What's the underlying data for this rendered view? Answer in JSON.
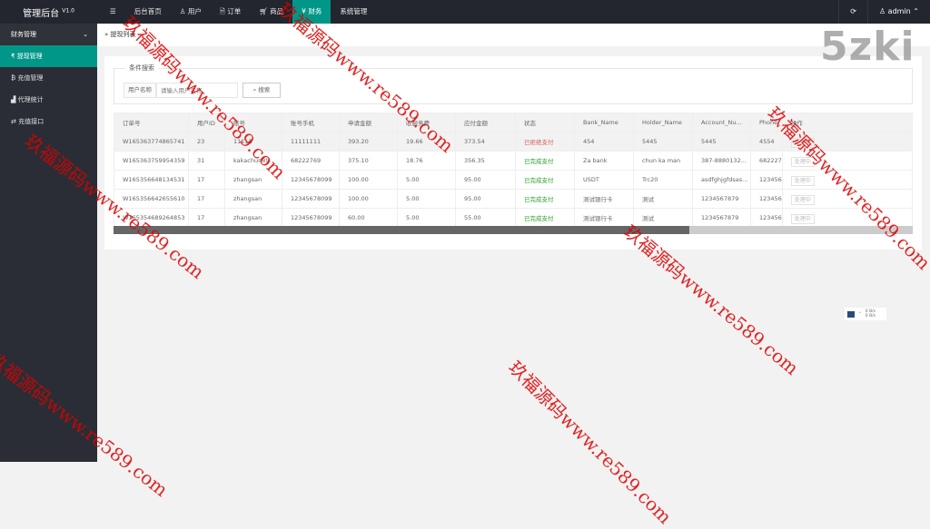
{
  "app": {
    "title": "管理后台",
    "version": "V1.0"
  },
  "topnav": {
    "menu_icon": "hamburger-icon",
    "items": [
      {
        "label": "后台首页"
      },
      {
        "label": "用户",
        "icon": "user-icon"
      },
      {
        "label": "订单",
        "icon": "document-icon"
      },
      {
        "label": "商品",
        "icon": "cart-icon"
      },
      {
        "label": "财务",
        "icon": "yen-icon",
        "active": true
      },
      {
        "label": "系统管理"
      }
    ],
    "refresh_icon": "refresh-icon",
    "user": "admin"
  },
  "sidebar": {
    "group": "财务管理",
    "items": [
      {
        "label": "提现管理",
        "icon": "rupee-icon",
        "active": true
      },
      {
        "label": "充值管理",
        "icon": "bitcoin-icon"
      },
      {
        "label": "代理统计",
        "icon": "chart-icon"
      },
      {
        "label": "充值接口",
        "icon": "exchange-icon"
      }
    ]
  },
  "breadcrumb": "提现列表",
  "search": {
    "legend": "条件搜索",
    "label": "用户名称",
    "placeholder": "请输入用户名称",
    "button": "搜索"
  },
  "table": {
    "headers": [
      "订单号",
      "用户ID",
      "账号",
      "账号手机",
      "申请金额",
      "收服务费",
      "应付金额",
      "状态",
      "Bank_Name",
      "Holder_Name",
      "Account_Nu...",
      "Phone_",
      "操作"
    ],
    "rows": [
      [
        "W165363774865741",
        "23",
        "11111",
        "11111111",
        "393.20",
        "19.66",
        "373.54",
        "已拒绝支付",
        "454",
        "5445",
        "5445",
        "4554",
        "处理中"
      ],
      [
        "W165363759954359",
        "31",
        "kakachun89",
        "68222769",
        "375.10",
        "18.76",
        "356.35",
        "已完成支付",
        "Za bank",
        "chun ka man",
        "387-8880132...",
        "682227",
        "处理中"
      ],
      [
        "W165356648134531",
        "17",
        "zhangsan",
        "12345678099",
        "100.00",
        "5.00",
        "95.00",
        "已完成支付",
        "USDT",
        "Trc20",
        "asdfghjgfdsas...",
        "123456",
        "处理中"
      ],
      [
        "W165356642655610",
        "17",
        "zhangsan",
        "12345678099",
        "100.00",
        "5.00",
        "95.00",
        "已完成支付",
        "测试银行卡",
        "测试",
        "1234567879",
        "123456",
        "处理中"
      ],
      [
        "W165354689264853",
        "17",
        "zhangsan",
        "12345678099",
        "60.00",
        "5.00",
        "55.00",
        "已完成支付",
        "测试银行卡",
        "测试",
        "1234567879",
        "123456",
        "处理中"
      ]
    ],
    "status_colors": {
      "已拒绝支付": "#d45d5d",
      "已完成支付": "#2a9d2a"
    },
    "scroll_position": 0.72
  },
  "watermark": {
    "logo": "5zki",
    "text": "玖福源码www.re589.com"
  },
  "net_widget": {
    "up": "0 B/s",
    "down": "0 B/s"
  },
  "colors": {
    "accent": "#009688",
    "topbar": "#23262e",
    "sidebar": "#2a2d35"
  }
}
